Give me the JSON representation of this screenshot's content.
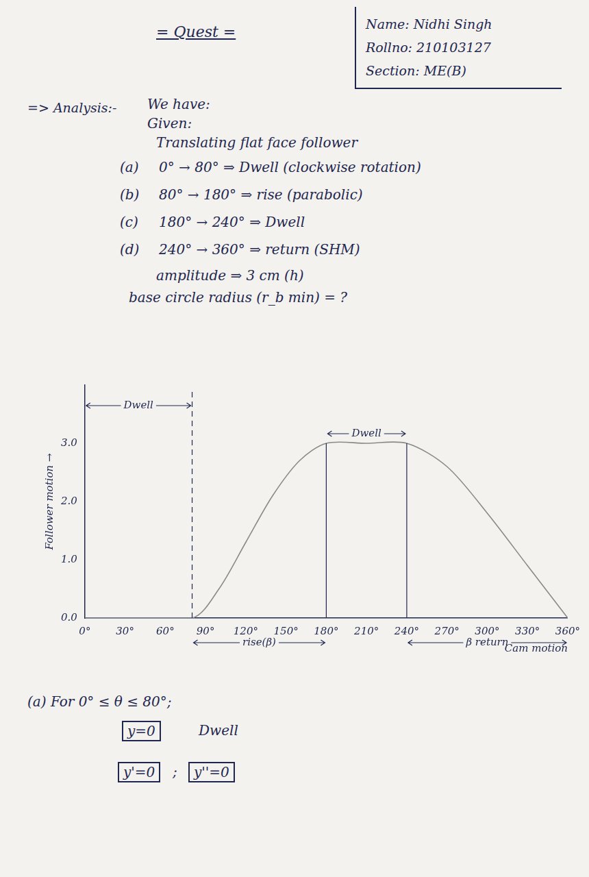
{
  "header": {
    "title": "= Quest =",
    "info": [
      "Name: Nidhi Singh",
      "Rollno: 210103127",
      "Section: ME(B)"
    ]
  },
  "analysis": {
    "heading": "=> Analysis:-",
    "lines": [
      "We have:",
      "Given:",
      "Translating flat face follower"
    ]
  },
  "given": [
    {
      "label": "(a)",
      "text": "0° → 80° ⇒ Dwell (clockwise rotation)"
    },
    {
      "label": "(b)",
      "text": "80° → 180° ⇒ rise (parabolic)"
    },
    {
      "label": "(c)",
      "text": "180° → 240° ⇒ Dwell"
    },
    {
      "label": "(d)",
      "text": "240° → 360° ⇒ return (SHM)"
    }
  ],
  "amplitude": "amplitude ⇒ 3 cm (h)",
  "base_circle": "base circle radius (r_b min) = ?",
  "chart_data": {
    "type": "line",
    "x_label": "Cam motion",
    "y_label": "Follower motion →",
    "x": [
      0,
      80,
      100,
      120,
      140,
      160,
      180,
      210,
      240,
      270,
      300,
      330,
      360
    ],
    "values": [
      0,
      0,
      0.5,
      1.3,
      2.1,
      2.7,
      3.0,
      3.0,
      3.0,
      2.6,
      1.8,
      0.9,
      0
    ],
    "color": "#8a8a8a",
    "xlim": [
      0,
      360
    ],
    "xticks": [
      {
        "value": 0,
        "label": "0°"
      },
      {
        "value": 30,
        "label": "30°"
      },
      {
        "value": 60,
        "label": "60°"
      },
      {
        "value": 90,
        "label": "90°"
      },
      {
        "value": 120,
        "label": "120°"
      },
      {
        "value": 150,
        "label": "150°"
      },
      {
        "value": 180,
        "label": "180°"
      },
      {
        "value": 210,
        "label": "210°"
      },
      {
        "value": 240,
        "label": "240°"
      },
      {
        "value": 270,
        "label": "270°"
      },
      {
        "value": 300,
        "label": "300°"
      },
      {
        "value": 330,
        "label": "330°"
      },
      {
        "value": 360,
        "label": "360°"
      }
    ],
    "ylim": [
      0,
      4
    ],
    "yticks": [
      {
        "value": 0,
        "label": "0.0"
      },
      {
        "value": 1,
        "label": "1.0"
      },
      {
        "value": 2,
        "label": "2.0"
      },
      {
        "value": 3,
        "label": "3.0"
      }
    ],
    "grid": false,
    "span_labels_top": [
      {
        "text": "Dwell",
        "from": 0,
        "to": 80
      },
      {
        "text": "Dwell",
        "from": 180,
        "to": 240
      }
    ],
    "span_labels_bottom": [
      {
        "text": "rise(β)",
        "from": 80,
        "to": 180
      },
      {
        "text": "β return",
        "from": 240,
        "to": 360
      }
    ],
    "vlines": [
      {
        "x": 80,
        "line_style": "dashed"
      },
      {
        "x": 180,
        "line_style": "solid"
      },
      {
        "x": 240,
        "line_style": "solid"
      }
    ]
  },
  "solution": {
    "heading": "(a) For 0° ≤ θ ≤ 80°;",
    "boxes": [
      "y=0",
      "y'=0",
      "y''=0"
    ],
    "note": "Dwell",
    "separator": ";"
  }
}
